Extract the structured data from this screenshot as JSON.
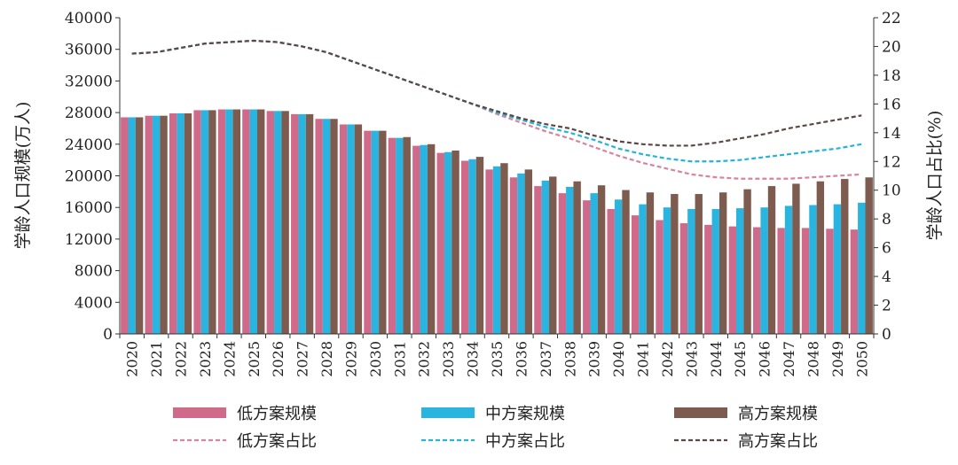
{
  "chart_data": {
    "type": "bar+line",
    "categories": [
      "2020",
      "2021",
      "2022",
      "2023",
      "2024",
      "2025",
      "2026",
      "2027",
      "2028",
      "2029",
      "2030",
      "2031",
      "2032",
      "2033",
      "2034",
      "2035",
      "2036",
      "2037",
      "2038",
      "2039",
      "2040",
      "2041",
      "2042",
      "2043",
      "2044",
      "2045",
      "2046",
      "2047",
      "2048",
      "2049",
      "2050"
    ],
    "ylabel_left": "学龄人口规模(万人)",
    "ylabel_right": "学龄人口占比(%)",
    "ylim_left": [
      0,
      40000
    ],
    "yticks_left": [
      "0",
      "4000",
      "8000",
      "12000",
      "16000",
      "20000",
      "24000",
      "28000",
      "32000",
      "36000",
      "40000"
    ],
    "ylim_right": [
      0,
      22
    ],
    "yticks_right": [
      "0",
      "2",
      "4",
      "6",
      "8",
      "10",
      "12",
      "14",
      "16",
      "18",
      "20",
      "22"
    ],
    "bar_series": [
      {
        "name": "低方案规模",
        "color": "#cf6a8b",
        "values": [
          27400,
          27600,
          27900,
          28300,
          28400,
          28400,
          28200,
          27800,
          27200,
          26500,
          25700,
          24800,
          23800,
          22900,
          21900,
          20800,
          19800,
          18700,
          17800,
          16900,
          15800,
          15000,
          14400,
          14000,
          13800,
          13600,
          13500,
          13400,
          13400,
          13300,
          13200
        ]
      },
      {
        "name": "中方案规模",
        "color": "#2ab4e0",
        "values": [
          27400,
          27600,
          27900,
          28300,
          28400,
          28400,
          28200,
          27800,
          27200,
          26500,
          25700,
          24800,
          23900,
          23000,
          22100,
          21200,
          20300,
          19400,
          18600,
          17800,
          17000,
          16400,
          16000,
          15800,
          15800,
          15900,
          16000,
          16200,
          16300,
          16400,
          16600
        ]
      },
      {
        "name": "高方案规模",
        "color": "#7d5b4e",
        "values": [
          27400,
          27600,
          27900,
          28300,
          28400,
          28400,
          28200,
          27800,
          27200,
          26500,
          25700,
          24900,
          24000,
          23200,
          22400,
          21600,
          20800,
          19900,
          19300,
          18800,
          18200,
          17900,
          17700,
          17700,
          17900,
          18300,
          18700,
          19000,
          19300,
          19600,
          19800
        ]
      }
    ],
    "line_series": [
      {
        "name": "低方案占比",
        "color": "#d8839f",
        "values": [
          19.5,
          19.6,
          19.9,
          20.2,
          20.3,
          20.4,
          20.3,
          20.0,
          19.6,
          19.0,
          18.4,
          17.8,
          17.2,
          16.6,
          16.0,
          15.3,
          14.7,
          14.1,
          13.6,
          13.0,
          12.4,
          11.9,
          11.5,
          11.1,
          10.9,
          10.8,
          10.8,
          10.8,
          10.9,
          11.0,
          11.1
        ]
      },
      {
        "name": "中方案占比",
        "color": "#22b4da",
        "values": [
          19.5,
          19.6,
          19.9,
          20.2,
          20.3,
          20.4,
          20.3,
          20.0,
          19.6,
          19.0,
          18.4,
          17.8,
          17.2,
          16.6,
          16.0,
          15.4,
          14.9,
          14.4,
          14.0,
          13.5,
          12.9,
          12.5,
          12.2,
          12.0,
          12.0,
          12.1,
          12.3,
          12.5,
          12.7,
          12.9,
          13.2
        ]
      },
      {
        "name": "高方案占比",
        "color": "#5c4743",
        "values": [
          19.5,
          19.6,
          19.9,
          20.2,
          20.3,
          20.4,
          20.3,
          20.0,
          19.6,
          19.0,
          18.4,
          17.8,
          17.2,
          16.6,
          16.0,
          15.5,
          15.0,
          14.6,
          14.3,
          13.8,
          13.4,
          13.2,
          13.1,
          13.1,
          13.3,
          13.6,
          13.9,
          14.3,
          14.6,
          14.9,
          15.2
        ]
      }
    ]
  }
}
